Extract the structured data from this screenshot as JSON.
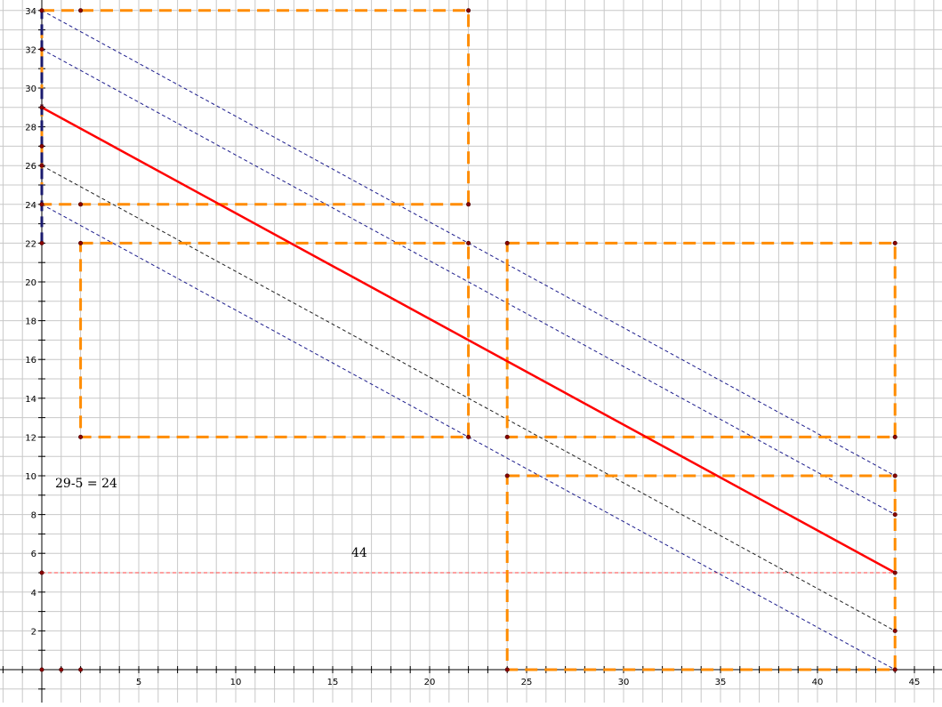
{
  "axes": {
    "x_ticks": [
      "5",
      "10",
      "15",
      "20",
      "25",
      "30",
      "35",
      "40",
      "45"
    ],
    "y_ticks": [
      "2",
      "4",
      "6",
      "8",
      "10",
      "12",
      "14",
      "16",
      "18",
      "20",
      "22",
      "24",
      "26",
      "28",
      "30",
      "32",
      "34"
    ],
    "x_range": [
      -2,
      46.7
    ],
    "y_range": [
      -1.7,
      34.5
    ]
  },
  "annotations": {
    "equation": "29-5 = 24",
    "width_label": "44"
  },
  "colors": {
    "grid": "#c8c8c8",
    "axis": "#000000",
    "rect": "#ff8c00",
    "main_line": "#ff0000",
    "guide_blue": "#1c1c8c",
    "guide_black": "#202020",
    "helper_red": "#ff4040",
    "point": "#8b0000"
  },
  "rectangles": [
    {
      "x1": 2,
      "y1": 12,
      "x2": 22,
      "y2": 22
    },
    {
      "x1": 0,
      "y1": 24,
      "x2": 22,
      "y2": 34
    },
    {
      "x1": 24,
      "y1": 12,
      "x2": 44,
      "y2": 22
    },
    {
      "x1": 24,
      "y1": 0,
      "x2": 44,
      "y2": 10
    }
  ],
  "main_line": {
    "x1": 0,
    "y1": 29,
    "x2": 44,
    "y2": 5
  },
  "guide_lines": [
    {
      "x1": 0,
      "y1": 34,
      "x2": 44,
      "y2": 10,
      "style": "blue"
    },
    {
      "x1": 0,
      "y1": 32,
      "x2": 44,
      "y2": 8,
      "style": "blue"
    },
    {
      "x1": 0,
      "y1": 26,
      "x2": 44,
      "y2": 2,
      "style": "black"
    },
    {
      "x1": 0,
      "y1": 24,
      "x2": 44,
      "y2": 0,
      "style": "blue"
    }
  ],
  "helper_line": {
    "x1": 0,
    "y1": 5,
    "x2": 44,
    "y2": 5
  },
  "segment_on_y_axis": {
    "x": 0,
    "y1": 22,
    "y2": 34
  },
  "points": [
    [
      0,
      34
    ],
    [
      0,
      32
    ],
    [
      0,
      29
    ],
    [
      0,
      27
    ],
    [
      0,
      26
    ],
    [
      0,
      24
    ],
    [
      0,
      22
    ],
    [
      0,
      5
    ],
    [
      0,
      0
    ],
    [
      2,
      34
    ],
    [
      22,
      34
    ],
    [
      2,
      24
    ],
    [
      22,
      24
    ],
    [
      2,
      22
    ],
    [
      22,
      22
    ],
    [
      2,
      12
    ],
    [
      22,
      12
    ],
    [
      24,
      22
    ],
    [
      44,
      22
    ],
    [
      24,
      12
    ],
    [
      44,
      12
    ],
    [
      24,
      10
    ],
    [
      44,
      10
    ],
    [
      44,
      8
    ],
    [
      44,
      5
    ],
    [
      44,
      2
    ],
    [
      44,
      0
    ],
    [
      24,
      0
    ],
    [
      1,
      0
    ],
    [
      2,
      0
    ]
  ]
}
